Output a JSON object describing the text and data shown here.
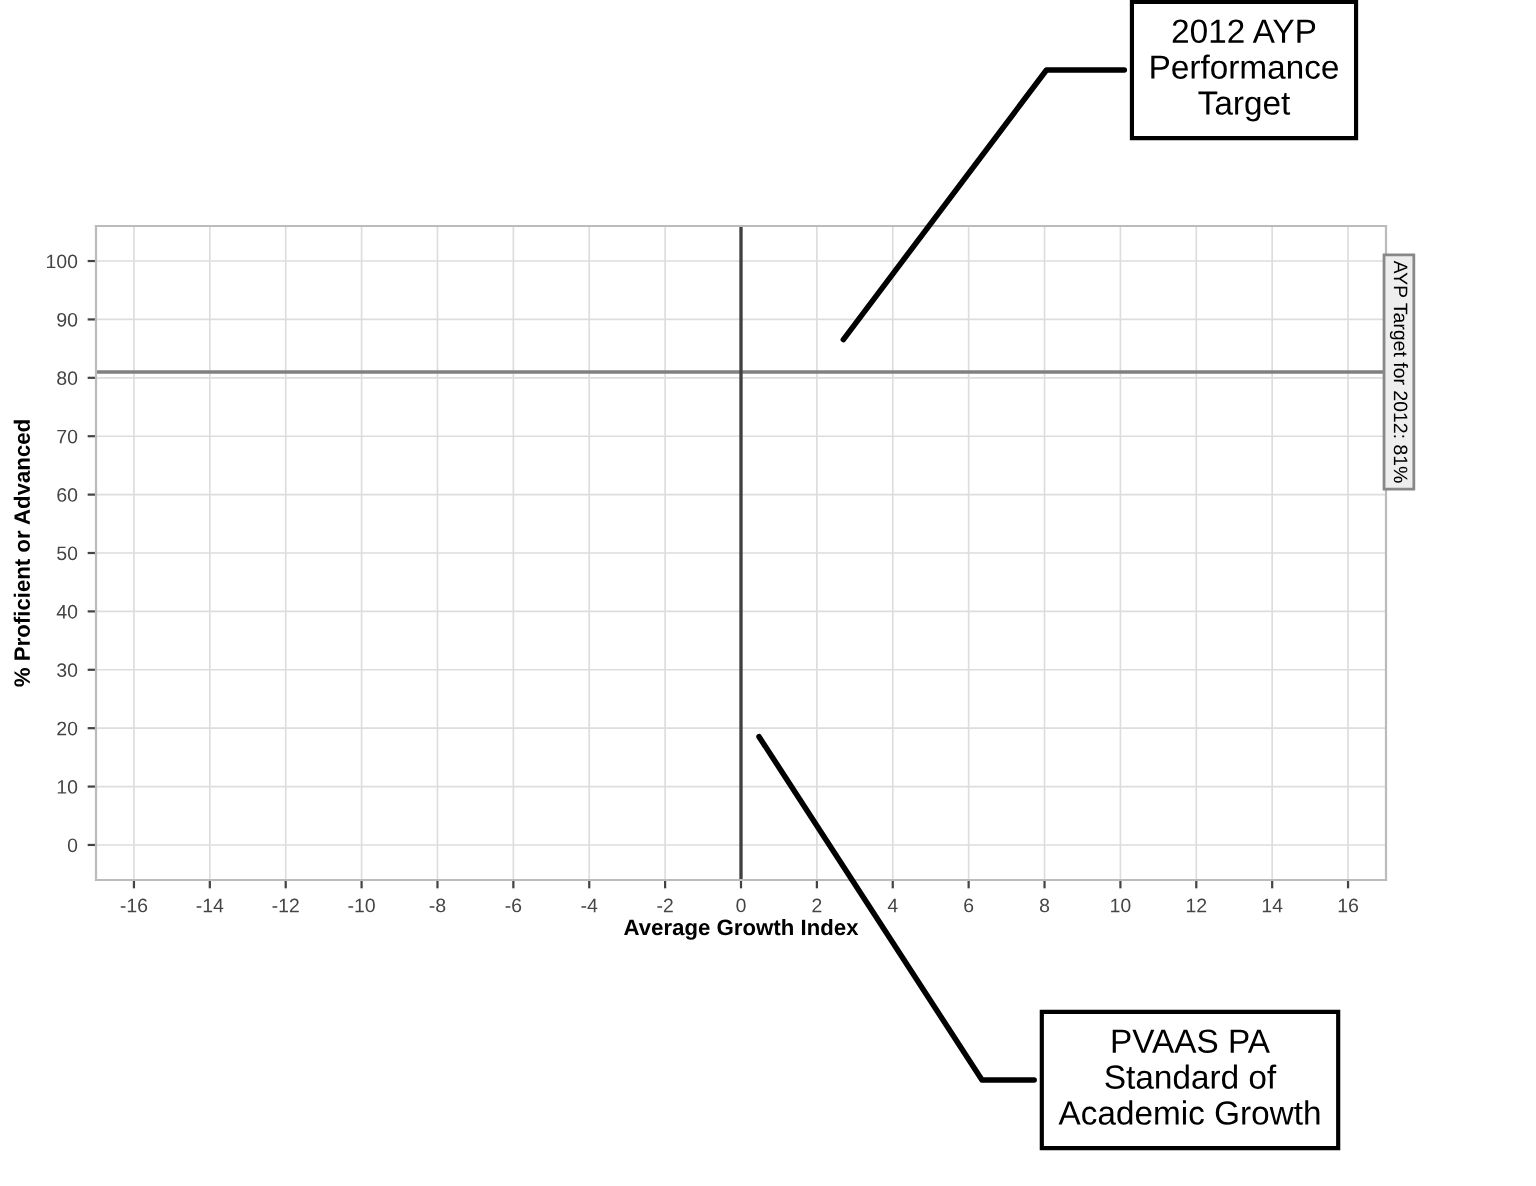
{
  "chart_data": {
    "type": "scatter",
    "xlabel": "Average Growth Index",
    "ylabel": "% Proficient or Advanced",
    "xlim": [
      -17,
      17
    ],
    "xticks": [
      -16,
      -14,
      -12,
      -10,
      -8,
      -6,
      -4,
      -2,
      0,
      2,
      4,
      6,
      8,
      10,
      12,
      14,
      16
    ],
    "ylim": [
      -6,
      106
    ],
    "yticks": [
      0,
      10,
      20,
      30,
      40,
      50,
      60,
      70,
      80,
      90,
      100
    ],
    "grid": true,
    "ref_lines": [
      {
        "axis": "y",
        "value": 81,
        "label": "AYP Target for 2012: 81%",
        "color": "#808080"
      },
      {
        "axis": "x",
        "value": 0,
        "label": null,
        "color": "#404040"
      }
    ],
    "annotations": [
      "2012 AYP\nPerformance\nTarget",
      "PVAAS PA\nStandard of\nAcademic Growth"
    ]
  }
}
